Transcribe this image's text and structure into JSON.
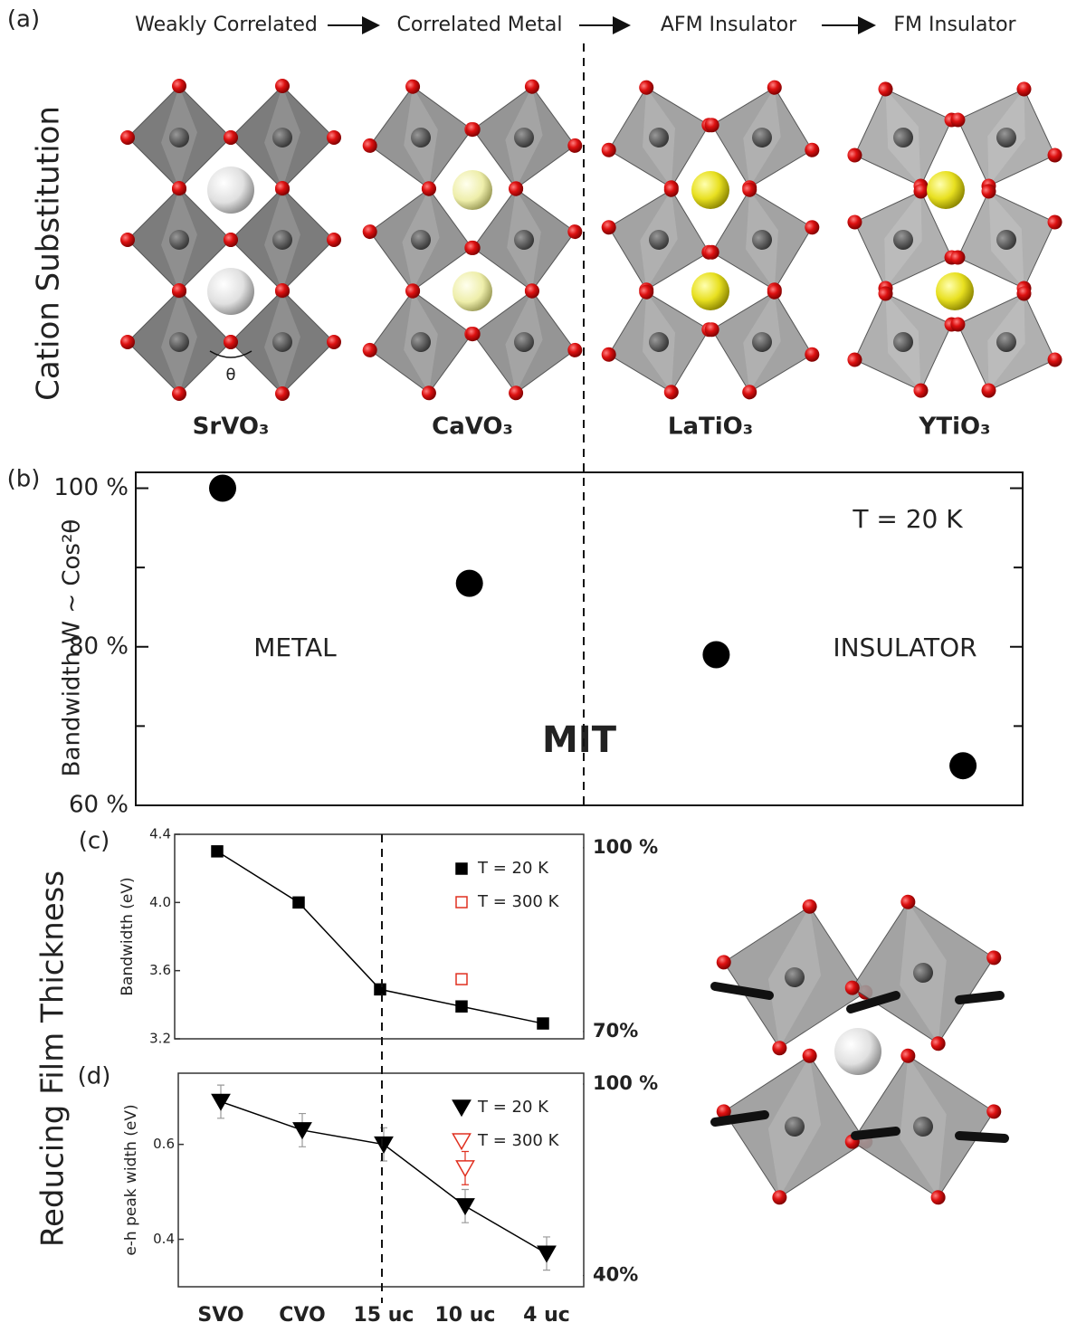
{
  "figure": {
    "panel_labels": [
      "(a)",
      "(b)",
      "(c)",
      "(d)"
    ],
    "phases": [
      "Weakly Correlated",
      "Correlated Metal",
      "AFM Insulator",
      "FM Insulator"
    ],
    "row_labels": [
      "Cation Substitution",
      "Reducing Film Thickness"
    ],
    "angle_label": "θ"
  },
  "chart_data": [
    {
      "type": "scatter",
      "categories": [
        "SrVO₃",
        "CaVO₃",
        "LaTiO₃",
        "YTiO₃"
      ],
      "values": [
        100,
        88,
        79,
        65
      ],
      "color": "#000000",
      "ylabel": "Bandwidth W ~ Cos²θ",
      "ylim": [
        60,
        102
      ],
      "yticks": [
        {
          "value": 60,
          "label": "60 %"
        },
        {
          "value": 80,
          "label": "80 %"
        },
        {
          "value": 100,
          "label": "100 %"
        }
      ],
      "minor_yticks": [
        70,
        90
      ],
      "annotations": [
        "T = 20 K",
        "METAL",
        "INSULATOR",
        "MIT"
      ]
    },
    {
      "type": "line",
      "ylabel": "Bandwidth (eV)",
      "categories": [
        null,
        null,
        null,
        null,
        null
      ],
      "ylim": [
        3.2,
        4.4
      ],
      "yticks": [
        3.2,
        3.6,
        {
          "value": 4,
          "label": "4.0"
        },
        4.4
      ],
      "y2lim": [
        68.8,
        102.2
      ],
      "y2ticks": [
        {
          "value": 100,
          "label": "100 %"
        },
        {
          "value": 70,
          "label": "70%"
        }
      ],
      "legend": "upper right",
      "series": [
        {
          "name": "T = 20 K",
          "color": "#000000",
          "marker": "square",
          "filled": true,
          "values": [
            4.3,
            4.0,
            3.49,
            3.39,
            3.29
          ]
        },
        {
          "name": "T = 300 K",
          "color": "#e03020",
          "marker": "square",
          "filled": false,
          "values": [
            null,
            null,
            null,
            3.55,
            null
          ]
        }
      ]
    },
    {
      "type": "line",
      "ylabel": "e-h peak width (eV)",
      "categories": [
        "SVO",
        "CVO",
        "15 uc",
        "10 uc",
        "4 uc"
      ],
      "ylim": [
        0.3,
        0.75
      ],
      "yticks": [
        0.4,
        0.6
      ],
      "y2lim": [
        36.5,
        103.4
      ],
      "y2ticks": [
        {
          "value": 100,
          "label": "100 %"
        },
        {
          "value": 40,
          "label": "40%"
        }
      ],
      "legend": "upper right",
      "series": [
        {
          "name": "T = 20 K",
          "color": "#000000",
          "marker": "triangle-down",
          "filled": true,
          "values": [
            0.69,
            0.63,
            0.6,
            0.47,
            0.37
          ],
          "errors": [
            0.035,
            0.035,
            0.035,
            0.035,
            0.035
          ]
        },
        {
          "name": "T = 300 K",
          "color": "#e03020",
          "marker": "triangle-down",
          "filled": false,
          "values": [
            null,
            null,
            null,
            0.55,
            null
          ],
          "errors": [
            null,
            null,
            null,
            0.035,
            null
          ]
        }
      ]
    }
  ]
}
